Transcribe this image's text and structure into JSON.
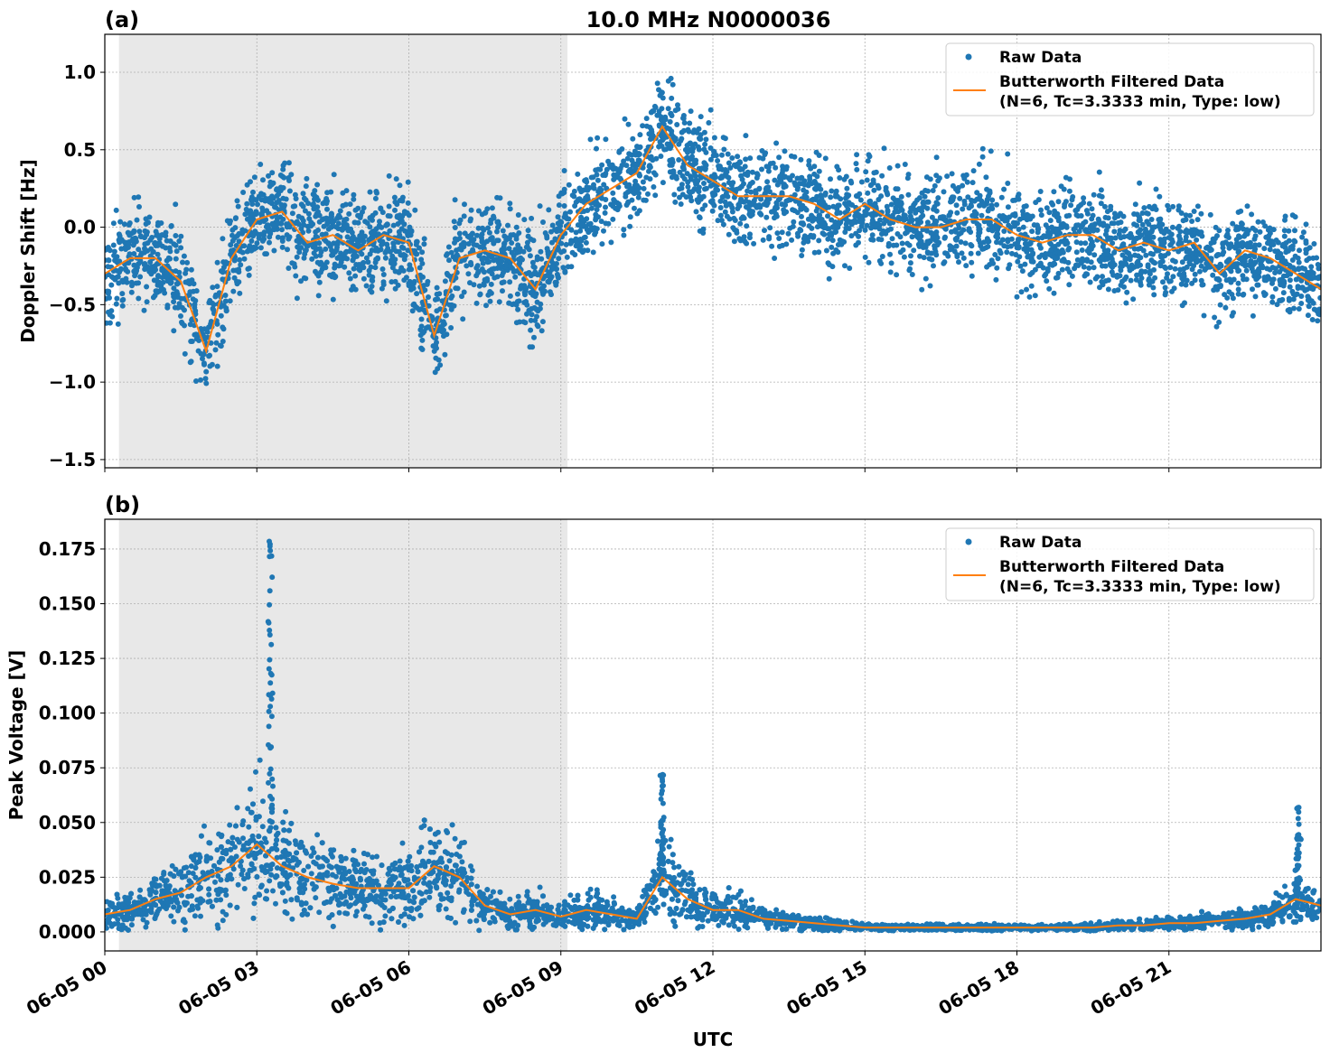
{
  "title": "10.0 MHz N0000036",
  "colors": {
    "raw": "#1f77b4",
    "filtered": "#ff7f0e",
    "shade": "#e8e8e8",
    "grid": "#b0b0b0"
  },
  "chart_data": [
    {
      "type": "scatter",
      "panel_label": "(a)",
      "title": "10.0 MHz N0000036",
      "xlabel": "",
      "ylabel": "Doppler Shift [Hz]",
      "x_unit": "hours UTC on 06-05",
      "xlim": [
        0,
        24
      ],
      "ylim": [
        -1.553,
        1.245
      ],
      "yticks": [
        -1.5,
        -1.0,
        -0.5,
        0.0,
        0.5,
        1.0
      ],
      "ytick_labels": [
        "−1.5",
        "−1.0",
        "−0.5",
        "0.0",
        "0.5",
        "1.0"
      ],
      "grid": true,
      "shaded_interval": [
        0.28,
        9.13
      ],
      "legend_placement": "top-right",
      "legend": [
        "Raw Data",
        "Butterworth Filtered Data",
        "(N=6, Tc=3.3333 min, Type: low)"
      ],
      "x": [
        0,
        0.5,
        1,
        1.5,
        2,
        2.5,
        3,
        3.5,
        4,
        4.5,
        5,
        5.5,
        6,
        6.5,
        7,
        7.5,
        8,
        8.5,
        9,
        9.5,
        10,
        10.5,
        11,
        11.5,
        12,
        12.5,
        13,
        13.5,
        14,
        14.5,
        15,
        15.5,
        16,
        16.5,
        17,
        17.5,
        18,
        18.5,
        19,
        19.5,
        20,
        20.5,
        21,
        21.5,
        22,
        22.5,
        23,
        23.5,
        24
      ],
      "series": [
        {
          "name": "Butterworth Filtered Data",
          "kind": "line",
          "values": [
            -0.3,
            -0.2,
            -0.2,
            -0.35,
            -0.8,
            -0.2,
            0.05,
            0.1,
            -0.1,
            -0.05,
            -0.15,
            -0.05,
            -0.1,
            -0.7,
            -0.2,
            -0.15,
            -0.2,
            -0.4,
            -0.05,
            0.15,
            0.25,
            0.35,
            0.65,
            0.4,
            0.3,
            0.2,
            0.2,
            0.2,
            0.15,
            0.05,
            0.15,
            0.05,
            0.0,
            0.0,
            0.05,
            0.05,
            -0.05,
            -0.1,
            -0.05,
            -0.05,
            -0.15,
            -0.1,
            -0.15,
            -0.1,
            -0.3,
            -0.15,
            -0.2,
            -0.3,
            -0.4
          ]
        },
        {
          "name": "Raw Data",
          "kind": "scatter",
          "spread": 0.33
        }
      ]
    },
    {
      "type": "scatter",
      "panel_label": "(b)",
      "xlabel": "UTC",
      "ylabel": "Peak Voltage [V]",
      "xlim": [
        0,
        24
      ],
      "ylim": [
        -0.0087,
        0.1886
      ],
      "yticks": [
        0.0,
        0.025,
        0.05,
        0.075,
        0.1,
        0.125,
        0.15,
        0.175
      ],
      "ytick_labels": [
        "0.000",
        "0.025",
        "0.050",
        "0.075",
        "0.100",
        "0.125",
        "0.150",
        "0.175"
      ],
      "xticks": [
        0,
        3,
        6,
        9,
        12,
        15,
        18,
        21
      ],
      "xtick_labels": [
        "06-05 00",
        "06-05 03",
        "06-05 06",
        "06-05 09",
        "06-05 12",
        "06-05 15",
        "06-05 18",
        "06-05 21"
      ],
      "grid": true,
      "shaded_interval": [
        0.28,
        9.13
      ],
      "legend_placement": "top-right",
      "legend": [
        "Raw Data",
        "Butterworth Filtered Data",
        "(N=6, Tc=3.3333 min, Type: low)"
      ],
      "x": [
        0,
        0.5,
        1,
        1.5,
        2,
        2.5,
        3,
        3.5,
        4,
        4.5,
        5,
        5.5,
        6,
        6.5,
        7,
        7.5,
        8,
        8.5,
        9,
        9.5,
        10,
        10.5,
        11,
        11.5,
        12,
        12.5,
        13,
        13.5,
        14,
        14.5,
        15,
        15.5,
        16,
        16.5,
        17,
        17.5,
        18,
        18.5,
        19,
        19.5,
        20,
        20.5,
        21,
        21.5,
        22,
        22.5,
        23,
        23.5,
        24
      ],
      "series": [
        {
          "name": "Butterworth Filtered Data",
          "kind": "line",
          "values": [
            0.008,
            0.01,
            0.015,
            0.018,
            0.025,
            0.03,
            0.04,
            0.03,
            0.025,
            0.022,
            0.02,
            0.02,
            0.02,
            0.03,
            0.025,
            0.012,
            0.008,
            0.01,
            0.007,
            0.01,
            0.008,
            0.006,
            0.025,
            0.015,
            0.01,
            0.01,
            0.006,
            0.005,
            0.004,
            0.003,
            0.002,
            0.002,
            0.002,
            0.002,
            0.002,
            0.002,
            0.002,
            0.002,
            0.002,
            0.002,
            0.003,
            0.003,
            0.004,
            0.004,
            0.005,
            0.006,
            0.008,
            0.015,
            0.012
          ]
        },
        {
          "name": "Raw Data",
          "kind": "scatter",
          "spread_fraction": 0.8,
          "spikes": [
            {
              "x": 3.27,
              "max": 0.18
            },
            {
              "x": 11.0,
              "max": 0.073
            },
            {
              "x": 23.55,
              "max": 0.059
            }
          ]
        }
      ]
    }
  ]
}
